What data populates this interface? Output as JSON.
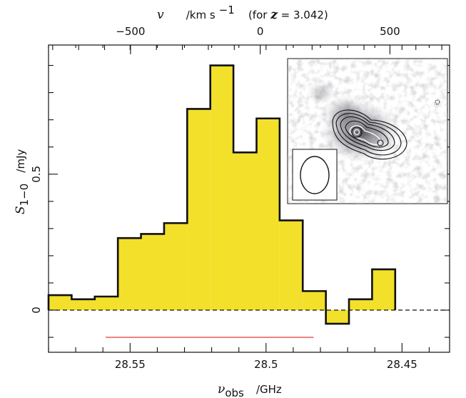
{
  "chart_data": {
    "type": "bar",
    "style": "step-histogram",
    "bin_edges": [
      28.58,
      28.5715,
      28.563,
      28.5545,
      28.546,
      28.5375,
      28.529,
      28.5205,
      28.512,
      28.5035,
      28.495,
      28.4865,
      28.478,
      28.4695,
      28.461,
      28.4525
    ],
    "values": [
      0.055,
      0.04,
      0.05,
      0.265,
      0.28,
      0.32,
      0.74,
      0.9,
      0.58,
      0.705,
      0.33,
      0.07,
      -0.05,
      0.04,
      0.15
    ],
    "x_bottom": {
      "label_symbol": "ν",
      "label_subscript": "obs",
      "label_unit": "/GHz",
      "range": [
        28.58,
        28.4325
      ],
      "ticks": [
        28.55,
        28.5,
        28.45
      ],
      "tick_labels": [
        "28.55",
        "28.5",
        "28.45"
      ]
    },
    "x_top": {
      "label_symbol": "v",
      "label_unit_prefix": "/km s",
      "label_unit_exp": "−1",
      "label_note_prefix": "(for ",
      "label_note_var": "z",
      "label_note_suffix": " = 3.042)",
      "range": [
        -816,
        730
      ],
      "ticks": [
        -500,
        0,
        500
      ],
      "tick_labels": [
        "−500",
        "0",
        "500"
      ]
    },
    "y": {
      "label_symbol": "S",
      "label_subscript": "1−0",
      "label_unit": "/mJy",
      "range": [
        -0.155,
        0.975
      ],
      "ticks": [
        0,
        0.5
      ],
      "tick_labels": [
        "0",
        "0.5"
      ]
    },
    "zero_line": 0,
    "line_range": {
      "x": [
        28.559,
        28.4825
      ],
      "y": -0.1,
      "color": "#e84a4a"
    },
    "fill_color": "#f2e02a",
    "edge_color": "#111111",
    "inset": {
      "content": "grayscale map with contours",
      "beam_ellipse": true
    }
  }
}
